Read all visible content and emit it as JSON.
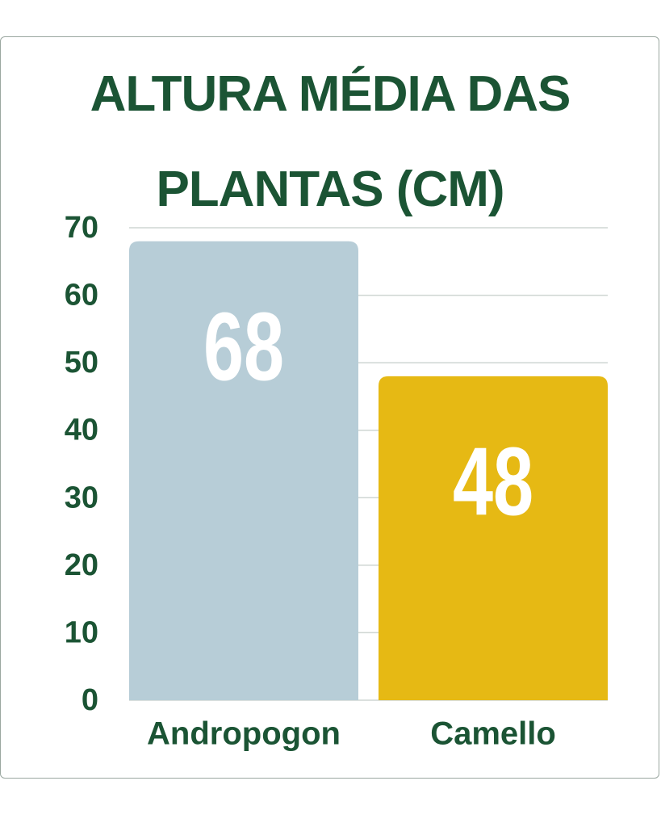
{
  "chart_data": {
    "type": "bar",
    "title": "ALTURA MÉDIA DAS PLANTAS (CM)",
    "categories": [
      "Andropogon",
      "Camello"
    ],
    "values": [
      68,
      48
    ],
    "colors": [
      "#b7cdd7",
      "#e6b914"
    ],
    "ylim": [
      0,
      70
    ],
    "yticks": [
      0,
      10,
      20,
      30,
      40,
      50,
      60,
      70
    ],
    "grid": true
  }
}
